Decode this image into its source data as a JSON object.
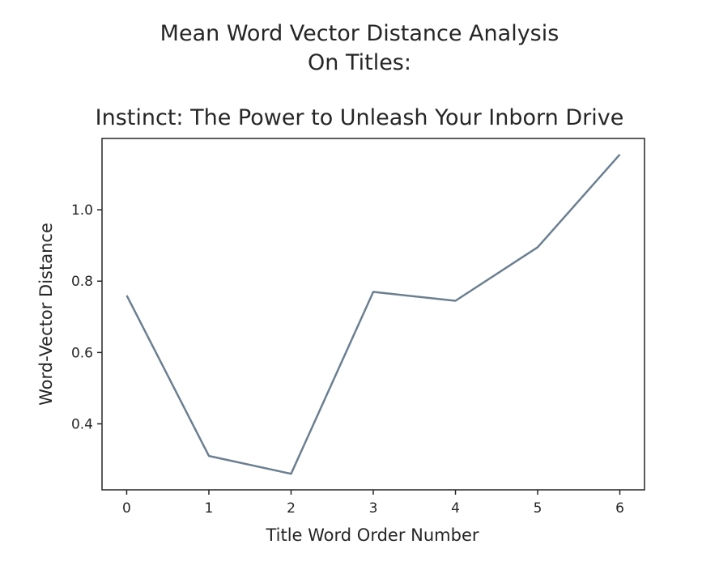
{
  "chart_data": {
    "type": "line",
    "title_lines": [
      "Mean Word Vector Distance Analysis",
      "On Titles:"
    ],
    "subtitle": "Instinct: The Power to Unleash Your Inborn Drive",
    "xlabel": "Title Word Order Number",
    "ylabel": "Word-Vector Distance",
    "x": [
      0,
      1,
      2,
      3,
      4,
      5,
      6
    ],
    "y": [
      0.76,
      0.31,
      0.26,
      0.77,
      0.745,
      0.895,
      1.155
    ],
    "x_ticks": [
      "0",
      "1",
      "2",
      "3",
      "4",
      "5",
      "6"
    ],
    "y_ticks": [
      "0.4",
      "0.6",
      "0.8",
      "1.0"
    ],
    "xlim": [
      -0.3,
      6.3
    ],
    "ylim": [
      0.215,
      1.2
    ],
    "grid": false,
    "series_color": "#6b7f91"
  }
}
